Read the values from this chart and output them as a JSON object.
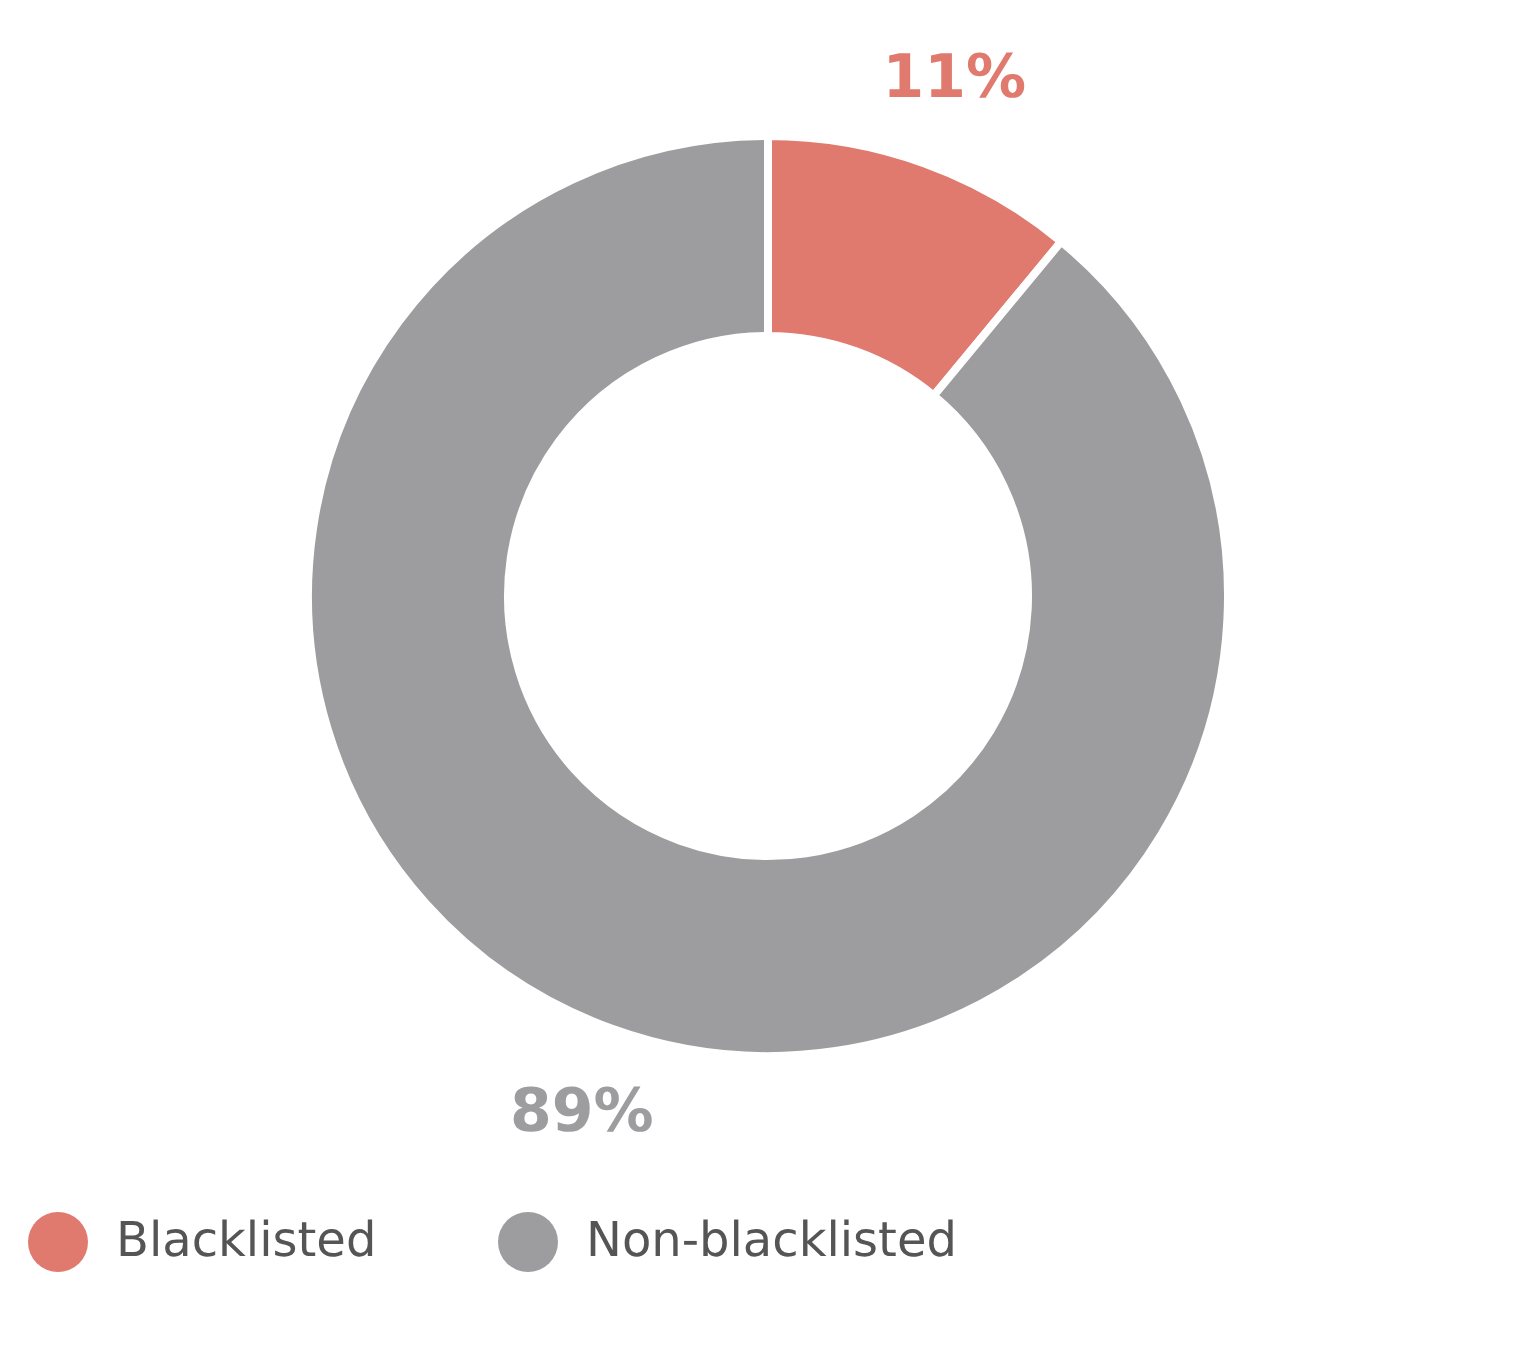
{
  "chart_data": {
    "type": "donut",
    "categories": [
      "Blacklisted",
      "Non-blacklisted"
    ],
    "values": [
      11,
      89
    ],
    "colors": [
      "#e07a6e",
      "#9d9d9f"
    ],
    "value_labels": [
      "11%",
      "89%"
    ],
    "legend": "bottom"
  }
}
